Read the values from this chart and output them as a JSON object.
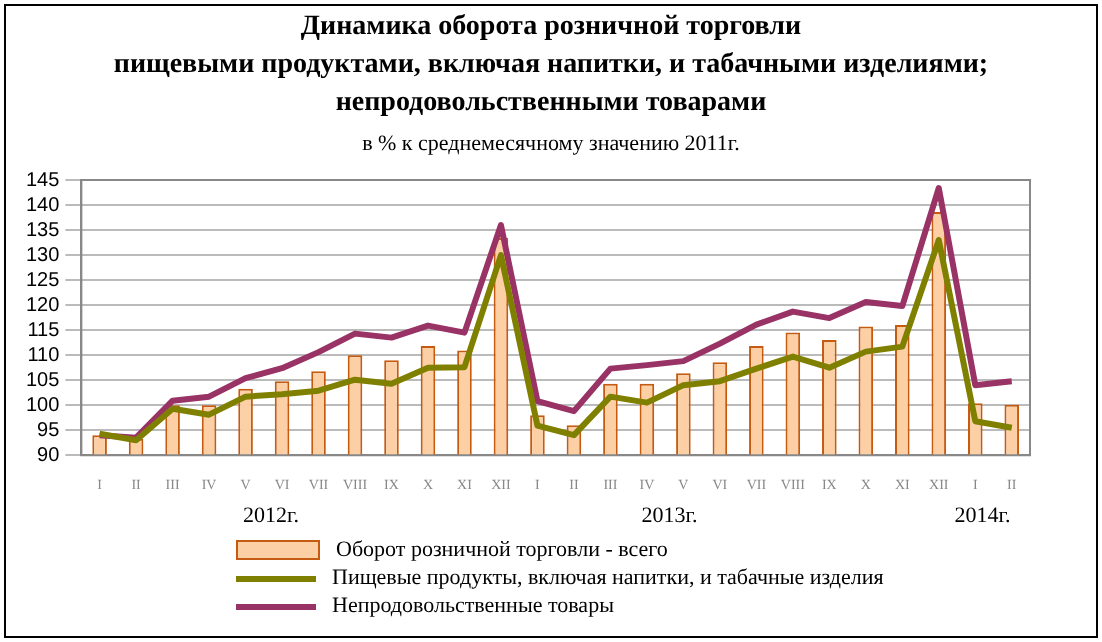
{
  "chart_data": {
    "type": "bar",
    "title": "Динамика оборота розничной торговли\nпищевыми продуктами, включая напитки, и табачными изделиями;\nнепродовольственными товарами",
    "subtitle": "в % к среднемесячному значению 2011г.",
    "categories": [
      "I",
      "II",
      "III",
      "IV",
      "V",
      "VI",
      "VII",
      "VIII",
      "IX",
      "X",
      "XI",
      "XII",
      "I",
      "II",
      "III",
      "IV",
      "V",
      "VI",
      "VII",
      "VIII",
      "IX",
      "X",
      "XI",
      "XII",
      "I",
      "II"
    ],
    "annotations": [
      "2012г.",
      "2013г.",
      "2014г."
    ],
    "ylim": [
      90,
      145
    ],
    "yticks": [
      90,
      95,
      100,
      105,
      110,
      115,
      120,
      125,
      130,
      135,
      140,
      145
    ],
    "grid": "y",
    "legend": "bottom",
    "series": [
      {
        "name": "Оборот розничной торговли - всего",
        "type": "bar",
        "color": "#fcd0a4",
        "values": [
          94,
          93.3,
          100,
          100,
          103.3,
          104.8,
          106.8,
          110,
          109,
          111.8,
          110.9,
          133.4,
          98,
          96,
          104.3,
          104.3,
          106.4,
          108.6,
          111.8,
          114.5,
          113,
          115.7,
          116,
          138.6,
          100.4,
          100.1
        ]
      },
      {
        "name": "Пищевые продукты, включая напитки, и табачные изделия",
        "type": "line",
        "color": "#808000",
        "values": [
          94.3,
          93,
          99.3,
          98.1,
          101.7,
          102.2,
          102.9,
          105.1,
          104.3,
          107.5,
          107.6,
          130,
          95.9,
          94,
          101.7,
          100.5,
          104,
          104.8,
          107.3,
          109.7,
          107.5,
          110.7,
          111.7,
          133,
          96.8,
          95.5
        ]
      },
      {
        "name": "Непродовольственные товары",
        "type": "line",
        "color": "#993366",
        "values": [
          94,
          93.5,
          100.9,
          101.7,
          105.4,
          107.4,
          110.6,
          114.3,
          113.5,
          115.9,
          114.5,
          136,
          100.8,
          98.8,
          107.3,
          108,
          108.8,
          112.3,
          116.1,
          118.7,
          117.4,
          120.6,
          119.8,
          143.4,
          104,
          104.8
        ]
      }
    ]
  }
}
